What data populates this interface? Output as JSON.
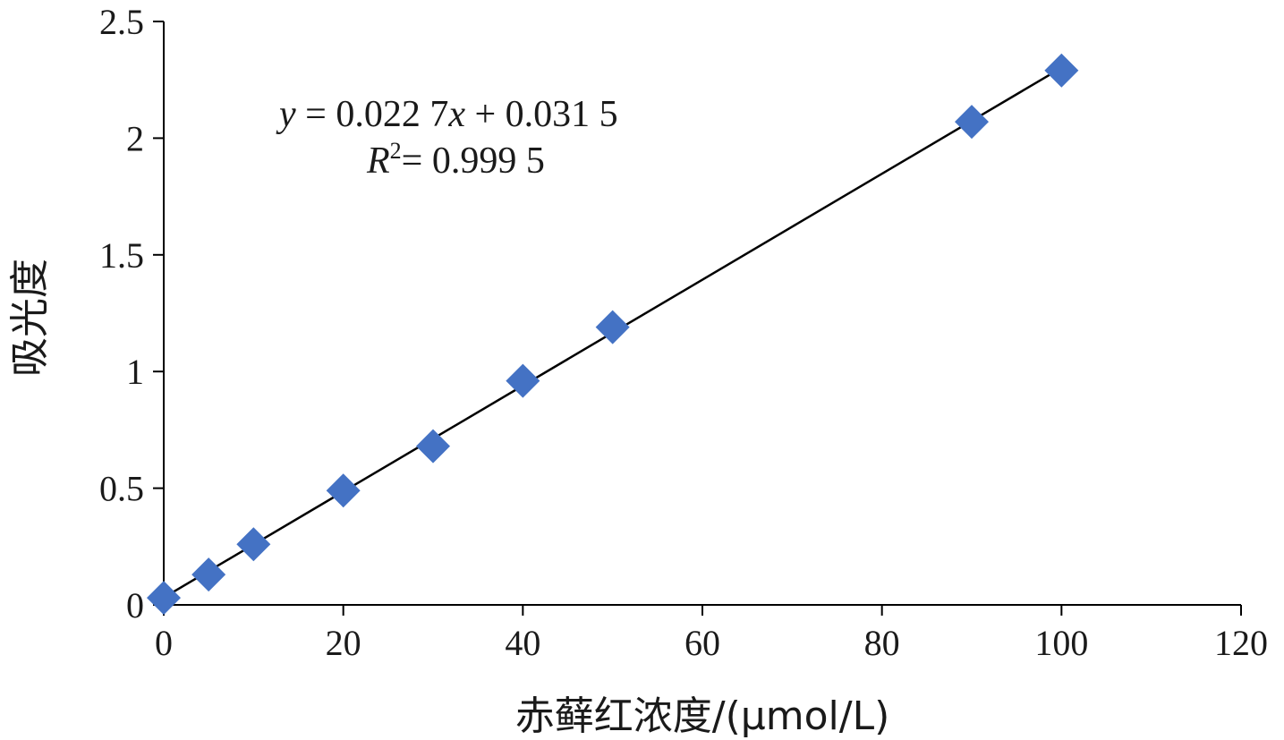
{
  "chart_data": {
    "type": "scatter",
    "x": [
      0,
      5,
      10,
      20,
      30,
      40,
      50,
      90,
      100
    ],
    "y": [
      0.03,
      0.13,
      0.26,
      0.49,
      0.68,
      0.96,
      1.19,
      2.07,
      2.29
    ],
    "xlabel": "赤藓红浓度/(μmol/L)",
    "ylabel": "吸光度",
    "xlim": [
      0,
      120
    ],
    "ylim": [
      0,
      2.5
    ],
    "xticks": [
      0,
      20,
      40,
      60,
      80,
      100,
      120
    ],
    "yticks": [
      0,
      0.5,
      1,
      1.5,
      2,
      2.5
    ],
    "ytick_labels": [
      "0",
      "0.5",
      "1",
      "1.5",
      "2",
      "2.5"
    ],
    "grid": false,
    "marker": "diamond",
    "marker_color": "#4472c4",
    "trendline": {
      "slope": 0.0227,
      "intercept": 0.0315,
      "x_range": [
        0,
        100
      ],
      "y_var": "y",
      "x_var": "x",
      "equation_rhs": " = 0.022 7",
      "equation_tail": " + 0.031 5",
      "r2_var": "R",
      "r2_exp": "2",
      "r2_value": "= 0.999 5"
    }
  }
}
